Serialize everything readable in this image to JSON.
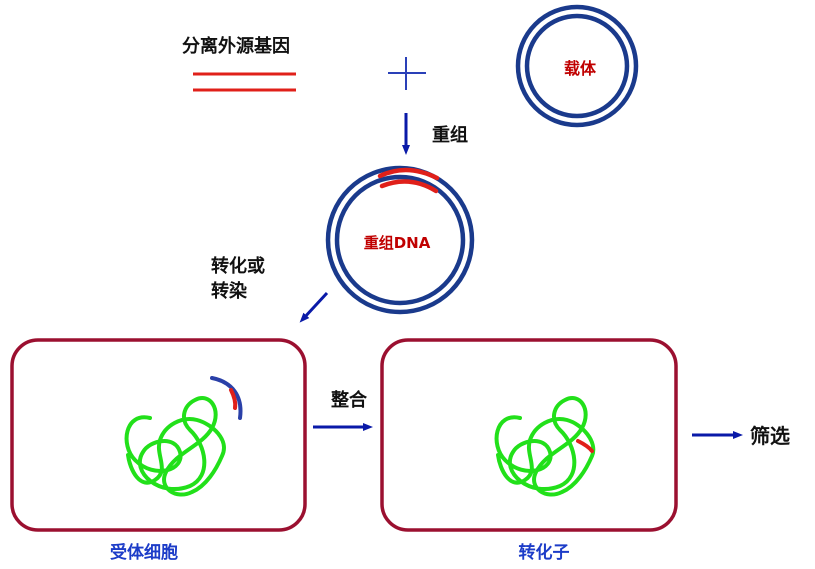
{
  "labels": {
    "foreign_gene": "分离外源基因",
    "vector": "载体",
    "recombination": "重组",
    "recombinant_dna": "重组DNA",
    "transform_line1": "转化或",
    "transform_line2": "转染",
    "integration": "整合",
    "screening": "筛选",
    "recipient_cell": "受体细胞",
    "transformant": "转化子"
  },
  "colors": {
    "navy": "#1a3a8c",
    "gene_red": "#e0201a",
    "label_red": "#c00000",
    "cell_border": "#9b1030",
    "chromosome_green": "#22e01a",
    "caption_blue": "#1c3cc8",
    "arrow_blue": "#0a1aa8"
  },
  "icons": {
    "plus": "plus-icon",
    "down_arrow": "arrow-down-icon",
    "diag_arrow": "arrow-down-left-icon",
    "right_arrow": "arrow-right-icon"
  }
}
